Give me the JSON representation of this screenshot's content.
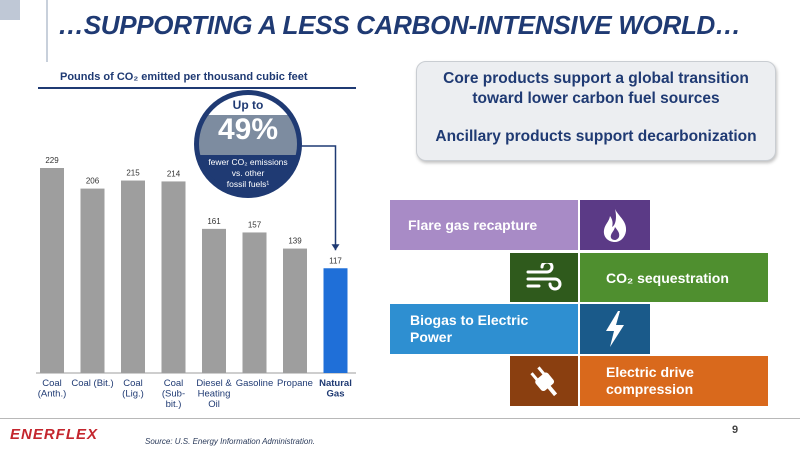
{
  "header": {
    "title": "…SUPPORTING A LESS CARBON-INTENSIVE WORLD…"
  },
  "chart_data": {
    "type": "bar",
    "title": "Pounds of CO₂ emitted per thousand cubic feet",
    "categories": [
      [
        "Coal",
        "(Anth.)"
      ],
      [
        "Coal (Bit.)"
      ],
      [
        "Coal",
        "(Lig.)"
      ],
      [
        "Coal",
        "(Sub-",
        "bit.)"
      ],
      [
        "Diesel &",
        "Heating",
        "Oil"
      ],
      [
        "Gasoline"
      ],
      [
        "Propane"
      ],
      [
        "Natural",
        "Gas"
      ]
    ],
    "values": [
      229,
      206,
      215,
      214,
      161,
      157,
      139,
      117
    ],
    "highlight_index": 7,
    "colors": {
      "default": "#9e9e9e",
      "highlight": "#1f6fd8"
    },
    "ylim": [
      0,
      229
    ],
    "grid": false
  },
  "badge": {
    "up_to": "Up to",
    "percent": "49%",
    "note_lines": [
      "fewer CO₂ emissions",
      "vs. other",
      "fossil fuels¹"
    ]
  },
  "callout": {
    "line1": "Core products support a global transition toward lower carbon fuel sources",
    "line2": "Ancillary products support decarbonization"
  },
  "solutions": [
    {
      "label": "Flare gas recapture",
      "icon": "flame-icon",
      "color": "#a88bc6",
      "icon_color": "#5b3a86"
    },
    {
      "label": "CO₂ sequestration",
      "icon": "wind-icon",
      "color": "#4f8f2f",
      "icon_color": "#2f5a1c"
    },
    {
      "label": "Biogas to Electric Power",
      "icon": "lightning-icon",
      "color": "#2e8fd1",
      "icon_color": "#1a5a8a"
    },
    {
      "label": "Electric drive compression",
      "icon": "plug-icon",
      "color": "#d9691c",
      "icon_color": "#8a3f10"
    }
  ],
  "footer": {
    "logo": "ENERFLEX",
    "source": "Source: U.S. Energy Information Administration.",
    "page": "9"
  }
}
